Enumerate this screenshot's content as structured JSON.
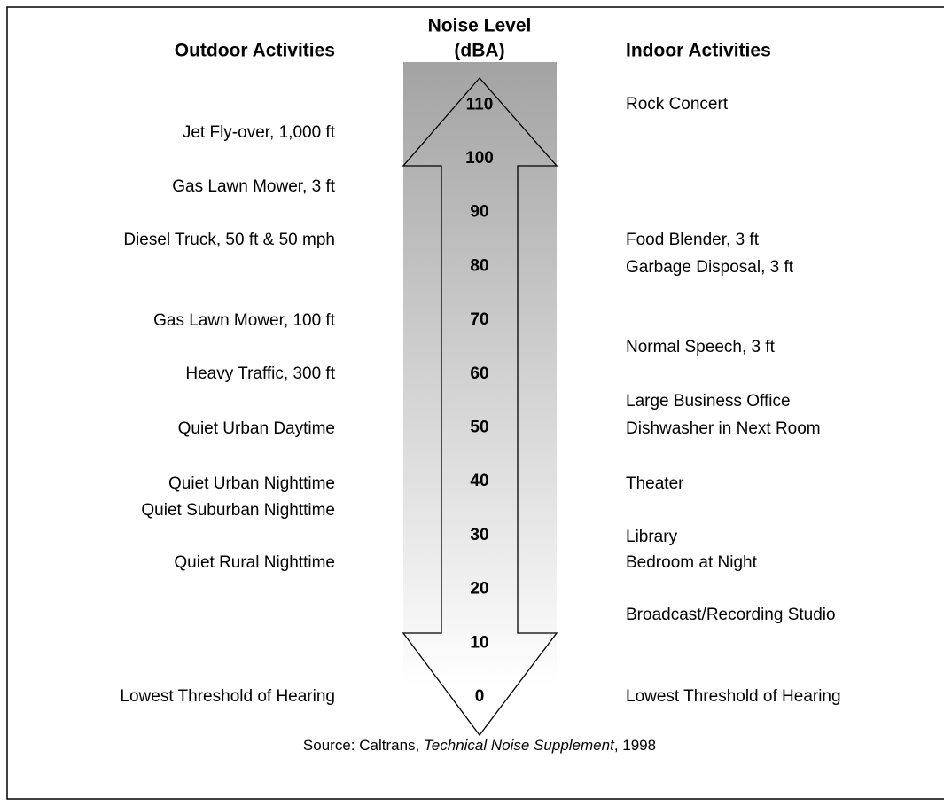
{
  "header": {
    "outdoor": "Outdoor Activities",
    "level_line1": "Noise Level",
    "level_line2": "(dBA)",
    "indoor": "Indoor Activities"
  },
  "scale": {
    "levels": [
      110,
      100,
      90,
      80,
      70,
      60,
      50,
      40,
      30,
      20,
      10,
      0
    ]
  },
  "outdoor": [
    "Jet Fly-over, 1,000 ft",
    "Gas Lawn Mower, 3 ft",
    "Diesel Truck, 50 ft & 50 mph",
    "Gas Lawn Mower, 100 ft",
    "Heavy Traffic, 300 ft",
    "Quiet Urban Daytime",
    "Quiet Urban Nighttime",
    "Quiet Suburban Nighttime",
    "Quiet Rural Nighttime",
    "Lowest Threshold of Hearing"
  ],
  "indoor": [
    "Rock Concert",
    "Food Blender, 3 ft",
    "Garbage Disposal, 3 ft",
    "Normal Speech, 3 ft",
    "Large Business Office",
    "Dishwasher in Next Room",
    "Theater",
    "Library",
    "Bedroom at Night",
    "Broadcast/Recording Studio",
    "Lowest Threshold of Hearing"
  ],
  "source": {
    "prefix": "Source:  Caltrans, ",
    "title": "Technical Noise Supplement",
    "suffix": ", 1998"
  }
}
